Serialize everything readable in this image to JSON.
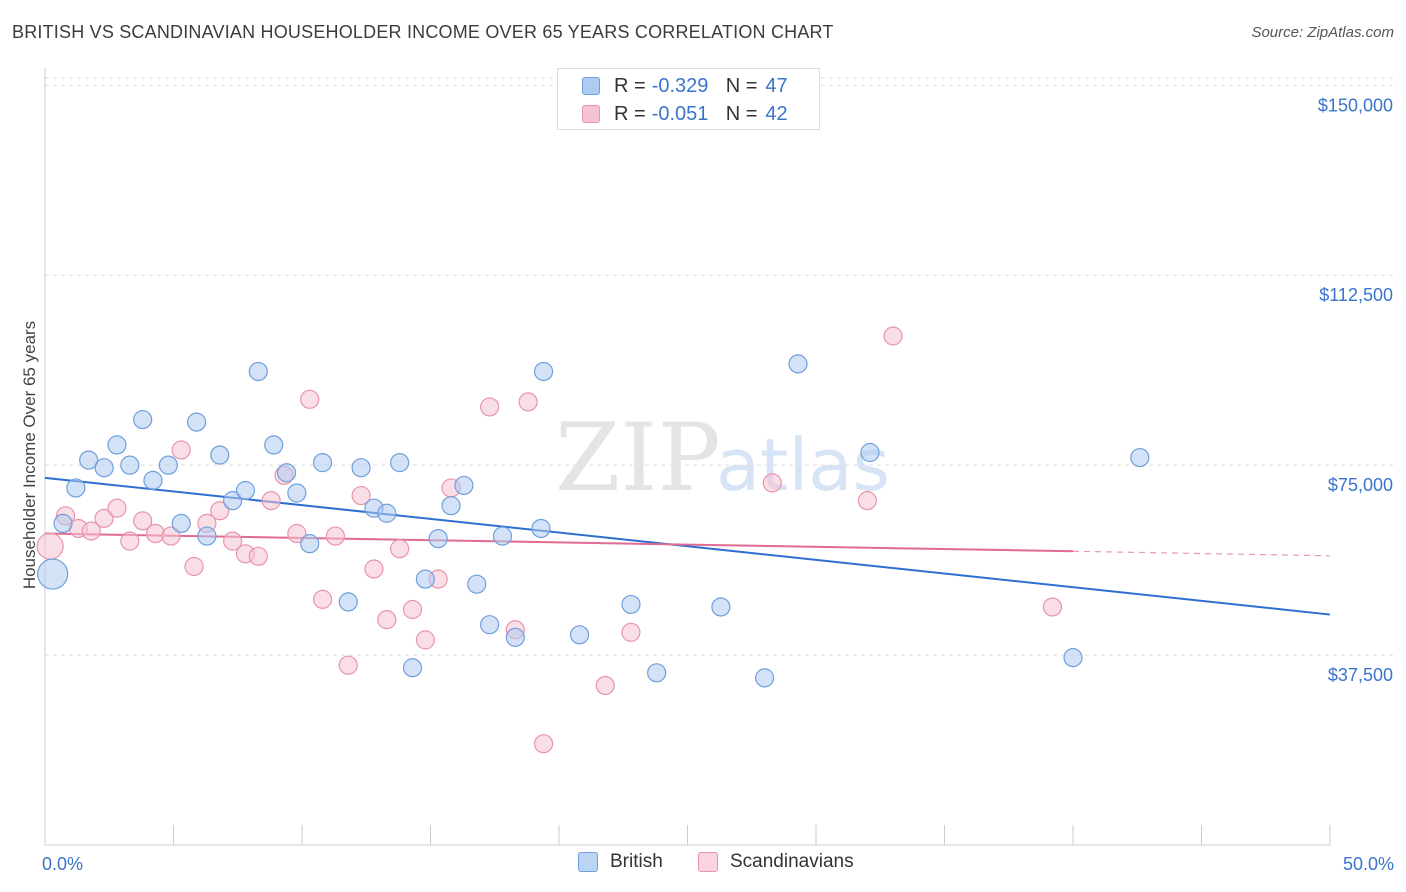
{
  "header": {
    "title": "BRITISH VS SCANDINAVIAN HOUSEHOLDER INCOME OVER 65 YEARS CORRELATION CHART",
    "source": "Source: ZipAtlas.com"
  },
  "watermark": {
    "zip": "ZIP",
    "atlas": "atlas"
  },
  "legend": {
    "r_label": "R =",
    "n_label": "N =",
    "british": {
      "r": "-0.329",
      "n": "47"
    },
    "scandinavians": {
      "r": "-0.051",
      "n": "42"
    }
  },
  "colors": {
    "british_fill": "#aecbf0",
    "british_stroke": "#6f9fdc",
    "british_line": "#2d6fd0",
    "scand_fill": "#f6c3d2",
    "scand_stroke": "#e894ae",
    "scand_line": "#e06b93",
    "tick_label": "#3a74cc",
    "grid": "#dedede"
  },
  "chart_data": {
    "type": "scatter",
    "title": "BRITISH VS SCANDINAVIAN HOUSEHOLDER INCOME OVER 65 YEARS CORRELATION CHART",
    "ylabel": "Householder Income Over 65 years",
    "xlabel": "",
    "xlim": [
      0,
      50
    ],
    "ylim": [
      0,
      155000
    ],
    "x_tick_labels": [
      "0.0%",
      "50.0%"
    ],
    "y_ticks": [
      37500,
      75000,
      112500,
      150000
    ],
    "y_tick_labels": [
      "$37,500",
      "$75,000",
      "$112,500",
      "$150,000"
    ],
    "grid": true,
    "legend_position": "top-center",
    "series": [
      {
        "name": "British",
        "r": -0.329,
        "n": 47,
        "trend": {
          "x0": 0,
          "y0": 72500,
          "x1": 50,
          "y1": 45500
        },
        "points": [
          [
            0.3,
            53500
          ],
          [
            0.7,
            63500
          ],
          [
            1.2,
            70500
          ],
          [
            1.7,
            76000
          ],
          [
            2.3,
            74500
          ],
          [
            2.8,
            79000
          ],
          [
            3.3,
            75000
          ],
          [
            3.8,
            84000
          ],
          [
            4.2,
            72000
          ],
          [
            4.8,
            75000
          ],
          [
            5.3,
            63500
          ],
          [
            5.9,
            83500
          ],
          [
            6.3,
            61000
          ],
          [
            6.8,
            77000
          ],
          [
            7.3,
            68000
          ],
          [
            7.8,
            70000
          ],
          [
            8.3,
            93500
          ],
          [
            8.9,
            79000
          ],
          [
            9.4,
            73500
          ],
          [
            9.8,
            69500
          ],
          [
            10.3,
            59500
          ],
          [
            10.8,
            75500
          ],
          [
            11.8,
            48000
          ],
          [
            12.3,
            74500
          ],
          [
            12.8,
            66500
          ],
          [
            13.3,
            65500
          ],
          [
            13.8,
            75500
          ],
          [
            14.3,
            35000
          ],
          [
            14.8,
            52500
          ],
          [
            15.3,
            60500
          ],
          [
            15.8,
            67000
          ],
          [
            16.3,
            71000
          ],
          [
            16.8,
            51500
          ],
          [
            17.3,
            43500
          ],
          [
            17.8,
            61000
          ],
          [
            18.3,
            41000
          ],
          [
            19.3,
            62500
          ],
          [
            19.4,
            93500
          ],
          [
            20.8,
            41500
          ],
          [
            22.8,
            47500
          ],
          [
            23.8,
            34000
          ],
          [
            26.3,
            47000
          ],
          [
            28.0,
            33000
          ],
          [
            29.3,
            95000
          ],
          [
            32.1,
            77500
          ],
          [
            40.0,
            37000
          ],
          [
            42.6,
            76500
          ]
        ]
      },
      {
        "name": "Scandinavians",
        "r": -0.051,
        "n": 42,
        "trend": {
          "x0": 0,
          "y0": 61500,
          "x1": 40,
          "y1": 58000,
          "dash_to_x": 50,
          "dash_to_y": 57100
        },
        "points": [
          [
            0.2,
            59000
          ],
          [
            0.8,
            65000
          ],
          [
            1.3,
            62500
          ],
          [
            1.8,
            62000
          ],
          [
            2.3,
            64500
          ],
          [
            2.8,
            66500
          ],
          [
            3.3,
            60000
          ],
          [
            3.8,
            64000
          ],
          [
            4.3,
            61500
          ],
          [
            4.9,
            61000
          ],
          [
            5.3,
            78000
          ],
          [
            5.8,
            55000
          ],
          [
            6.3,
            63500
          ],
          [
            6.8,
            66000
          ],
          [
            7.3,
            60000
          ],
          [
            7.8,
            57500
          ],
          [
            8.3,
            57000
          ],
          [
            8.8,
            68000
          ],
          [
            9.3,
            73000
          ],
          [
            9.8,
            61500
          ],
          [
            10.3,
            88000
          ],
          [
            10.8,
            48500
          ],
          [
            11.3,
            61000
          ],
          [
            11.8,
            35500
          ],
          [
            12.3,
            69000
          ],
          [
            12.8,
            54500
          ],
          [
            13.3,
            44500
          ],
          [
            13.8,
            58500
          ],
          [
            14.3,
            46500
          ],
          [
            14.8,
            40500
          ],
          [
            15.3,
            52500
          ],
          [
            15.8,
            70500
          ],
          [
            17.3,
            86500
          ],
          [
            18.3,
            42500
          ],
          [
            18.8,
            87500
          ],
          [
            19.4,
            20000
          ],
          [
            21.8,
            31500
          ],
          [
            22.8,
            42000
          ],
          [
            28.3,
            71500
          ],
          [
            32.0,
            68000
          ],
          [
            33.0,
            100500
          ],
          [
            39.2,
            47000
          ]
        ]
      }
    ]
  },
  "bottom_legend": {
    "british": "British",
    "scandinavians": "Scandinavians"
  }
}
